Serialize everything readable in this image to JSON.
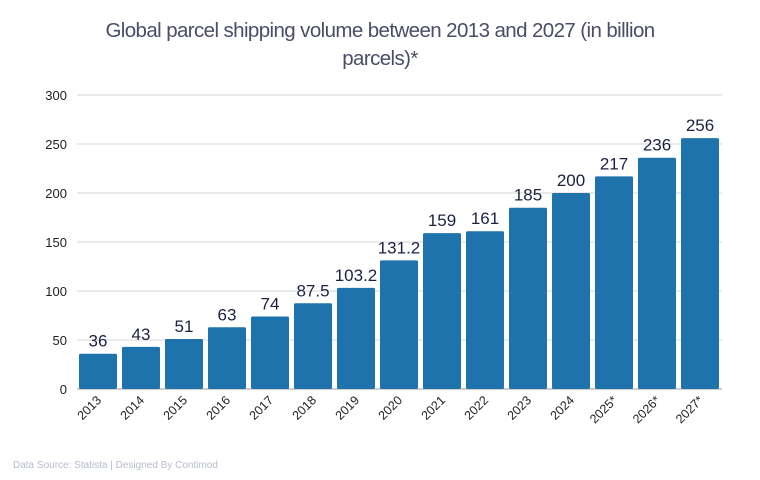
{
  "chart_data": {
    "type": "bar",
    "title": "Global parcel shipping volume between 2013 and 2027 (in billion parcels)*",
    "categories": [
      "2013",
      "2014",
      "2015",
      "2016",
      "2017",
      "2018",
      "2019",
      "2020",
      "2021",
      "2022",
      "2023",
      "2024",
      "2025*",
      "2026*",
      "2027*"
    ],
    "values": [
      36,
      43,
      51,
      63,
      74,
      87.5,
      103.2,
      131.2,
      159,
      161,
      185,
      200,
      217,
      236,
      256
    ],
    "data_labels": [
      "36",
      "43",
      "51",
      "63",
      "74",
      "87.5",
      "103.2",
      "131.2",
      "159",
      "161",
      "185",
      "200",
      "217",
      "236",
      "256"
    ],
    "xlabel": "",
    "ylabel": "",
    "ylim": [
      0,
      300
    ],
    "yticks": [
      0,
      50,
      100,
      150,
      200,
      250,
      300
    ],
    "grid": true,
    "legend": "none",
    "bar_color": "#1f73ad"
  },
  "footer": "Data Source: Statista | Designed By Contimod"
}
